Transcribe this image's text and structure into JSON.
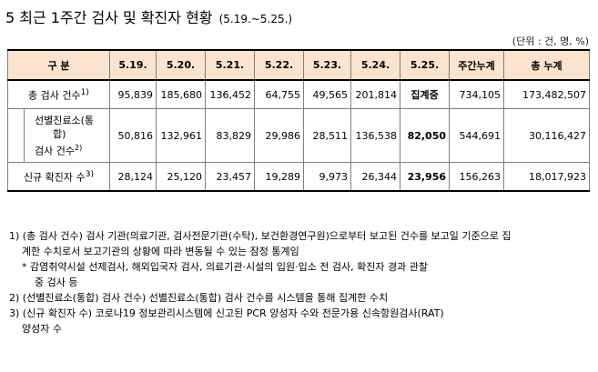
{
  "title": {
    "main": "5 최근 1주간 검사 및 확진자 현황",
    "sub": "(5.19.~5.25.)"
  },
  "unit": "(단위 : 건, 명, %)",
  "table": {
    "header": {
      "category": "구 분",
      "dates": [
        "5.19.",
        "5.20.",
        "5.21.",
        "5.22.",
        "5.23.",
        "5.24.",
        "5.25."
      ],
      "weekly": "주간누계",
      "total": "총 누계"
    },
    "rows": [
      {
        "label": "총 검사 건수",
        "note": "1)",
        "values": [
          "95,839",
          "185,680",
          "136,452",
          "64,755",
          "49,565",
          "201,814",
          "집계중"
        ],
        "weekly": "734,105",
        "total": "173,482,507"
      },
      {
        "label_line1": "선별진료소(통",
        "label_line2": "합)",
        "label_line3": "검사 건수",
        "note": "2)",
        "values": [
          "50,816",
          "132,961",
          "83,829",
          "29,986",
          "28,511",
          "136,538",
          "82,050"
        ],
        "weekly": "544,691",
        "total": "30,116,427"
      },
      {
        "label": "신규 확진자 수",
        "note": "3)",
        "values": [
          "28,124",
          "25,120",
          "23,457",
          "19,289",
          "9,973",
          "26,344",
          "23,956"
        ],
        "weekly": "156,263",
        "total": "18,017,923"
      }
    ]
  },
  "notes": {
    "n1_line1": "1) (총 검사 건수) 검사 기관(의료기관, 검사전문기관(수탁), 보건환경연구원)으로부터 보고된 건수를 보고일 기준으로 집",
    "n1_line2": "계한 수치로서 보고기관의 상황에 따라 변동될 수 있는 잠정 통계임",
    "n1_star1": "* 감염취약시설 선제검사, 해외입국자 검사, 의료기관·시설의 입원·입소 전 검사, 확진자 경과 관찰",
    "n1_star2": "중 검사 등",
    "n2": "2) (선별진료소(통합) 검사 건수) 선별진료소(통합) 검사 건수를 시스템을 통해 집계한 수치",
    "n3_line1": "3) (신규 확진자 수) 코로나19 정보관리시스템에 신고된 PCR 양성자 수와 전문가용 신속항원검사(RAT)",
    "n3_line2": "양성자 수"
  }
}
